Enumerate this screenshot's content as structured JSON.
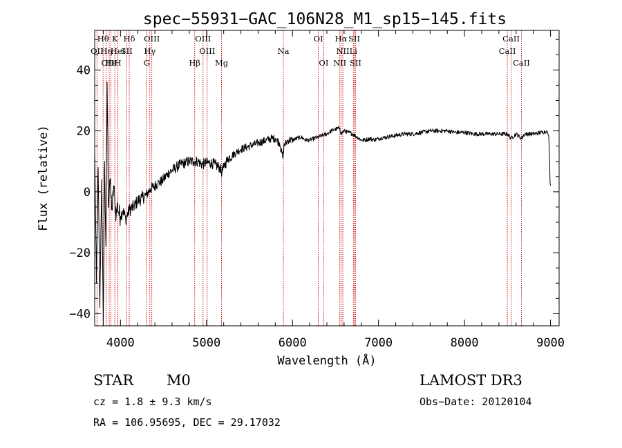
{
  "chart_data": {
    "type": "line",
    "title": "spec−55931−GAC_106N28_M1_sp15−145.fits",
    "xlabel": "Wavelength (Å)",
    "ylabel": "Flux (relative)",
    "xlim": [
      3700,
      9100
    ],
    "ylim": [
      -44,
      53
    ],
    "x_ticks": [
      4000,
      5000,
      6000,
      7000,
      8000,
      9000
    ],
    "x_tick_labels": [
      "4000",
      "5000",
      "6000",
      "7000",
      "8000",
      "9000"
    ],
    "y_ticks": [
      -40,
      -20,
      0,
      20,
      40
    ],
    "y_tick_labels": [
      "−40",
      "−20",
      "0",
      "20",
      "40"
    ],
    "series": [
      {
        "name": "flux",
        "x": [
          3700,
          3720,
          3740,
          3760,
          3780,
          3800,
          3815,
          3830,
          3845,
          3860,
          3875,
          3890,
          3905,
          3920,
          3935,
          3950,
          3965,
          3980,
          4000,
          4030,
          4060,
          4100,
          4150,
          4200,
          4250,
          4300,
          4350,
          4400,
          4450,
          4500,
          4550,
          4600,
          4650,
          4700,
          4750,
          4800,
          4850,
          4900,
          4950,
          5000,
          5050,
          5100,
          5150,
          5180,
          5200,
          5250,
          5300,
          5350,
          5400,
          5450,
          5500,
          5550,
          5600,
          5650,
          5700,
          5750,
          5800,
          5850,
          5890,
          5900,
          5950,
          6000,
          6050,
          6100,
          6150,
          6200,
          6250,
          6300,
          6350,
          6400,
          6450,
          6500,
          6550,
          6563,
          6600,
          6650,
          6700,
          6750,
          6800,
          6850,
          6900,
          6950,
          7000,
          7100,
          7200,
          7300,
          7400,
          7500,
          7600,
          7700,
          7800,
          7900,
          8000,
          8100,
          8200,
          8300,
          8400,
          8500,
          8542,
          8600,
          8662,
          8700,
          8800,
          8900,
          8960,
          8980,
          8990,
          8995,
          9000
        ],
        "y": [
          14,
          -30,
          8,
          -38,
          4,
          -43,
          10,
          -18,
          36,
          -5,
          4,
          -2,
          -6,
          2,
          -3,
          -8,
          -4,
          -7,
          -8,
          -6,
          -9,
          -6,
          -5,
          -3,
          -2,
          -1,
          1,
          2,
          3,
          4,
          6,
          7,
          8,
          9,
          9.5,
          10,
          10,
          10,
          9,
          9.5,
          9.5,
          9,
          8,
          6.5,
          8,
          11,
          12,
          13,
          14,
          14.5,
          15,
          15.5,
          16,
          16.5,
          17,
          17.5,
          17.5,
          16,
          11,
          15,
          17,
          17,
          17.5,
          18,
          17,
          17,
          17.5,
          18,
          18.5,
          19,
          20,
          20.5,
          21,
          19,
          20,
          19.5,
          19,
          18,
          17,
          17,
          17.5,
          17,
          17.5,
          18,
          18.5,
          19,
          19,
          19.5,
          20,
          20,
          20,
          19.5,
          19.5,
          19,
          19,
          19,
          19,
          19,
          17.5,
          19,
          17.5,
          19,
          19,
          19.5,
          20,
          18,
          10,
          3,
          2
        ]
      }
    ],
    "spectral_lines": [
      {
        "label": "Hθ",
        "x": 3798,
        "row": 0
      },
      {
        "label": "OII",
        "x": 3727,
        "row": 1
      },
      {
        "label": "Hη",
        "x": 3835,
        "row": 1
      },
      {
        "label": "OIII",
        "x": 3869,
        "row": 2
      },
      {
        "label": "Hε",
        "x": 3889,
        "row": 2
      },
      {
        "label": "K",
        "x": 3934,
        "row": 0
      },
      {
        "label": "HeI",
        "x": 3970,
        "row": 1
      },
      {
        "label": "H",
        "x": 3969,
        "row": 2
      },
      {
        "label": "SII",
        "x": 4072,
        "row": 1
      },
      {
        "label": "Hδ",
        "x": 4102,
        "row": 0
      },
      {
        "label": "OIII",
        "x": 4364,
        "row": 0
      },
      {
        "label": "Hγ",
        "x": 4341,
        "row": 1
      },
      {
        "label": "G",
        "x": 4305,
        "row": 2
      },
      {
        "label": "OIII",
        "x": 4960,
        "row": 0
      },
      {
        "label": "OIII",
        "x": 5008,
        "row": 1
      },
      {
        "label": "Hβ",
        "x": 4863,
        "row": 2
      },
      {
        "label": "Mg",
        "x": 5175,
        "row": 2
      },
      {
        "label": "Na",
        "x": 5894,
        "row": 1
      },
      {
        "label": "OI",
        "x": 6300,
        "row": 0
      },
      {
        "label": "OI",
        "x": 6363,
        "row": 2
      },
      {
        "label": "Hα",
        "x": 6565,
        "row": 0
      },
      {
        "label": "NII",
        "x": 6585,
        "row": 1
      },
      {
        "label": "NII",
        "x": 6550,
        "row": 2
      },
      {
        "label": "SII",
        "x": 6718,
        "row": 0
      },
      {
        "label": "Li",
        "x": 6708,
        "row": 1
      },
      {
        "label": "SII",
        "x": 6733,
        "row": 2
      },
      {
        "label": "CaII",
        "x": 8542,
        "row": 0
      },
      {
        "label": "CaII",
        "x": 8498,
        "row": 1
      },
      {
        "label": "CaII",
        "x": 8662,
        "row": 2
      }
    ],
    "line_color": "#cc0000"
  },
  "info": {
    "class": "STAR",
    "subclass": "M0",
    "survey": "LAMOST DR3",
    "velocity": "cz = 1.8 ± 9.3 km/s",
    "obs_date": "Obs−Date: 20120104",
    "coords": "RA = 106.95695, DEC =  29.17032"
  }
}
